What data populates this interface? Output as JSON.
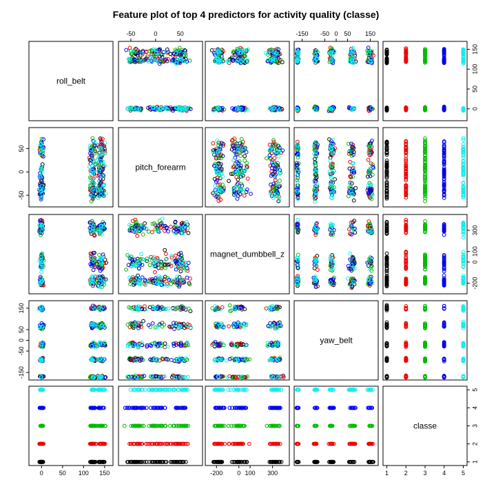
{
  "chart_data": {
    "type": "scatter",
    "subtype": "scatterplot-matrix",
    "title": "Feature plot of top 4 predictors for activity quality (classe)",
    "variables": [
      "roll_belt",
      "pitch_forearm",
      "magnet_dumbbell_z",
      "yaw_belt",
      "classe"
    ],
    "ranges": {
      "roll_belt": [
        -30,
        170
      ],
      "pitch_forearm": [
        -75,
        95
      ],
      "magnet_dumbbell_z": [
        -300,
        450
      ],
      "yaw_belt": [
        -185,
        185
      ],
      "classe": [
        0.8,
        5.2
      ]
    },
    "ticks": {
      "roll_belt": [
        0,
        50,
        100,
        150
      ],
      "pitch_forearm": [
        -50,
        0,
        50
      ],
      "magnet_dumbbell_z": [
        -200,
        0,
        100,
        300
      ],
      "yaw_belt": [
        -150,
        -50,
        0,
        50,
        150
      ],
      "classe": [
        1,
        2,
        3,
        4,
        5
      ]
    },
    "tick_labels": {
      "roll_belt": [
        "0",
        "50",
        "100",
        "150"
      ],
      "pitch_forearm": [
        "-50",
        "0",
        "50"
      ],
      "magnet_dumbbell_z": [
        "-200",
        "0",
        "100",
        "300"
      ],
      "yaw_belt": [
        "-150",
        "-50",
        "0",
        "50",
        "150"
      ],
      "classe": [
        "1",
        "2",
        "3",
        "4",
        "5"
      ]
    },
    "classes": [
      1,
      2,
      3,
      4,
      5
    ],
    "class_colors": [
      "#000000",
      "#ee0000",
      "#00bb00",
      "#0000ee",
      "#11eeee"
    ],
    "clusters": {
      "roll_belt": [
        {
          "center": 0,
          "spread": 5
        },
        {
          "center": 122,
          "spread": 7
        },
        {
          "center": 142,
          "spread": 10
        }
      ],
      "pitch_forearm": [
        {
          "center": 5,
          "spread": 30
        },
        {
          "center": -40,
          "spread": 20
        },
        {
          "center": 50,
          "spread": 20
        }
      ],
      "magnet_dumbbell_z": [
        {
          "center": 0,
          "spread": 90
        },
        {
          "center": -180,
          "spread": 50
        },
        {
          "center": 320,
          "spread": 70
        }
      ],
      "yaw_belt": [
        {
          "center": -90,
          "spread": 8
        },
        {
          "center": -20,
          "spread": 12
        },
        {
          "center": 150,
          "spread": 12
        },
        {
          "center": 70,
          "spread": 15
        },
        {
          "center": -170,
          "spread": 5
        }
      ]
    },
    "grid": false,
    "legend": "none",
    "axis_label_placement": "alternating outer margins"
  }
}
